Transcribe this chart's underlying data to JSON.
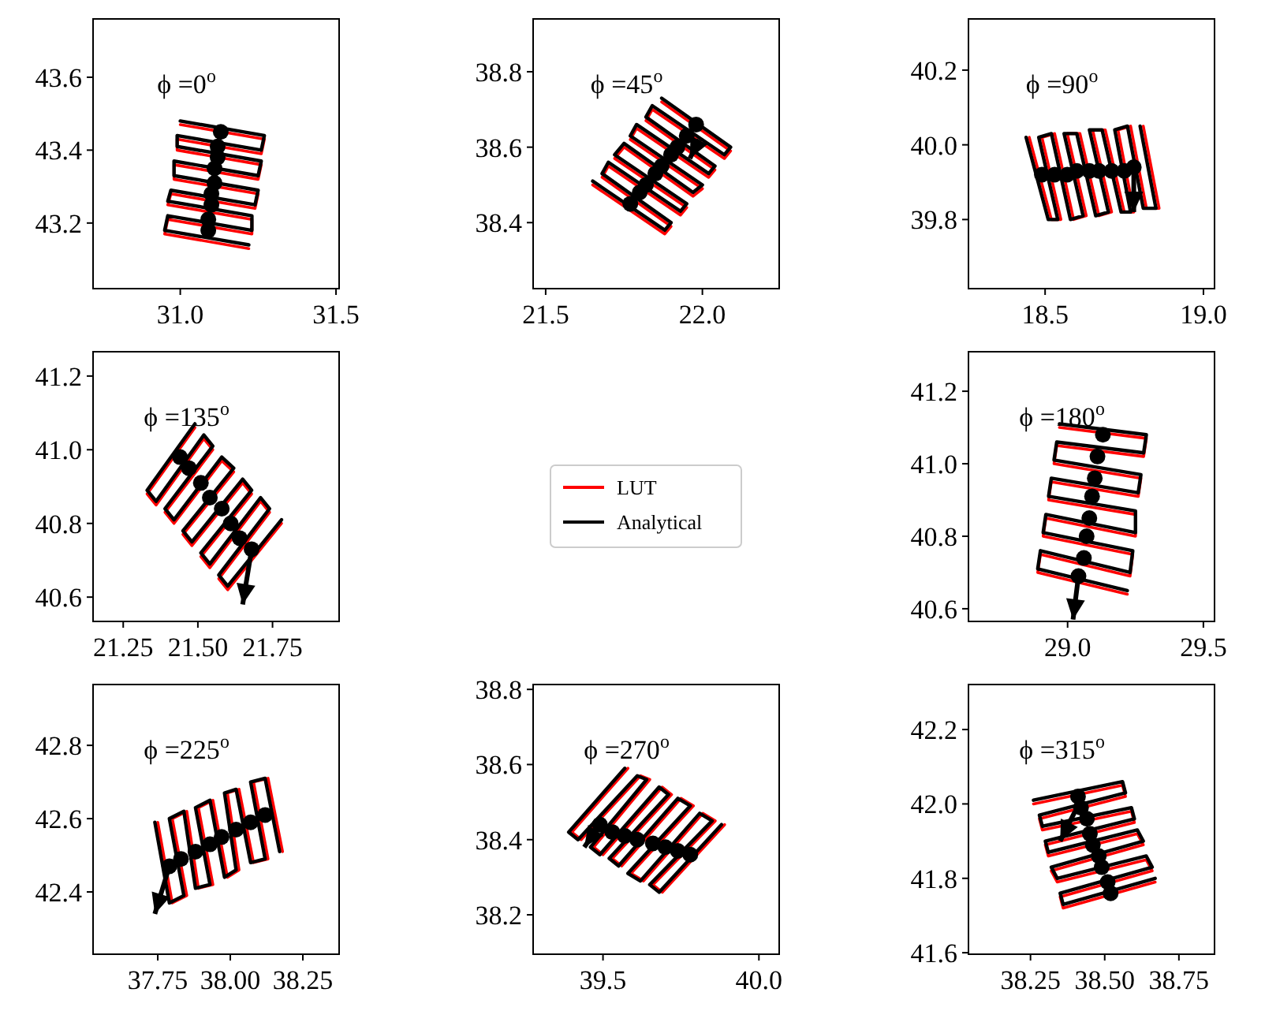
{
  "chart_data": [
    {
      "type": "line",
      "title": "ϕ =0$^{o}$",
      "xlim": [
        30.72,
        31.51
      ],
      "ylim": [
        43.02,
        43.76
      ],
      "xticks": [
        {
          "value": 31,
          "label": "31.0"
        },
        31.5
      ],
      "yticks": [
        43.2,
        43.4,
        43.6
      ],
      "series": [
        {
          "color": "#ff0000",
          "x": [
            31.0,
            31.27,
            31.26,
            30.99,
            30.99,
            31.26,
            31.25,
            30.98,
            30.98,
            31.25,
            31.24,
            30.97,
            30.96,
            31.23,
            31.23,
            30.96,
            30.95,
            31.22
          ],
          "values": [
            43.47,
            43.43,
            43.39,
            43.43,
            43.4,
            43.36,
            43.32,
            43.36,
            43.32,
            43.28,
            43.24,
            43.28,
            43.25,
            43.21,
            43.17,
            43.21,
            43.17,
            43.13
          ]
        },
        {
          "color": "#000000",
          "x": [
            31.0,
            31.27,
            31.26,
            30.99,
            30.99,
            31.26,
            31.25,
            30.98,
            30.98,
            31.25,
            31.24,
            30.97,
            30.96,
            31.23,
            31.23,
            30.96,
            30.95,
            31.22
          ],
          "values": [
            43.48,
            43.44,
            43.4,
            43.44,
            43.41,
            43.37,
            43.33,
            43.37,
            43.33,
            43.29,
            43.25,
            43.29,
            43.26,
            43.22,
            43.18,
            43.22,
            43.18,
            43.14
          ]
        },
        {
          "type": "scatter",
          "color": "#000000",
          "marker": "circle",
          "x": [
            31.13,
            31.12,
            31.12,
            31.11,
            31.11,
            31.1,
            31.1,
            31.09,
            31.09
          ],
          "values": [
            43.45,
            43.41,
            43.38,
            43.35,
            43.31,
            43.28,
            43.25,
            43.21,
            43.18
          ]
        }
      ]
    },
    {
      "type": "line",
      "title": "ϕ =45$^{o}$",
      "xlim": [
        21.46,
        22.245
      ],
      "ylim": [
        38.225,
        38.94
      ],
      "xticks": [
        21.5,
        {
          "value": 22,
          "label": "22.0"
        }
      ],
      "yticks": [
        38.4,
        38.6,
        38.8
      ],
      "series": [
        {
          "color": "#ff0000",
          "x": [
            21.65,
            21.88,
            21.9,
            21.68,
            21.7,
            21.93,
            21.95,
            21.72,
            21.75,
            21.97,
            22.0,
            21.77,
            21.79,
            22.02,
            22.04,
            21.82,
            21.84,
            22.07,
            22.09,
            21.87
          ],
          "values": [
            38.5,
            38.37,
            38.39,
            38.52,
            38.55,
            38.42,
            38.44,
            38.57,
            38.6,
            38.47,
            38.49,
            38.62,
            38.65,
            38.52,
            38.54,
            38.67,
            38.7,
            38.57,
            38.59,
            38.72
          ]
        },
        {
          "color": "#000000",
          "x": [
            21.65,
            21.88,
            21.9,
            21.68,
            21.7,
            21.93,
            21.95,
            21.72,
            21.75,
            21.97,
            22.0,
            21.77,
            21.79,
            22.02,
            22.04,
            21.82,
            21.84,
            22.07,
            22.09,
            21.87
          ],
          "values": [
            38.51,
            38.38,
            38.4,
            38.53,
            38.56,
            38.43,
            38.45,
            38.58,
            38.61,
            38.48,
            38.5,
            38.63,
            38.66,
            38.53,
            38.55,
            38.68,
            38.71,
            38.58,
            38.6,
            38.73
          ]
        },
        {
          "type": "scatter",
          "color": "#000000",
          "marker": "circle",
          "x": [
            21.77,
            21.8,
            21.82,
            21.85,
            21.87,
            21.9,
            21.92,
            21.95,
            21.98
          ],
          "values": [
            38.45,
            38.48,
            38.5,
            38.53,
            38.55,
            38.58,
            38.6,
            38.63,
            38.66
          ]
        },
        {
          "color": "#000000",
          "x": [
            21.99,
            21.96
          ],
          "values": [
            38.62,
            38.57
          ]
        }
      ]
    },
    {
      "type": "line",
      "title": "ϕ =90$^{o}$",
      "xlim": [
        18.258,
        19.035
      ],
      "ylim": [
        39.615,
        40.337
      ],
      "xticks": [
        18.5,
        {
          "value": 19,
          "label": "19.0"
        }
      ],
      "yticks": [
        39.8,
        {
          "value": 40,
          "label": "40.0"
        },
        40.2
      ],
      "series": [
        {
          "color": "#ff0000",
          "x": [
            18.45,
            18.52,
            18.55,
            18.49,
            18.53,
            18.59,
            18.63,
            18.57,
            18.61,
            18.67,
            18.71,
            18.65,
            18.69,
            18.75,
            18.78,
            18.73,
            18.77,
            18.82,
            18.86,
            18.81
          ],
          "values": [
            40.02,
            39.8,
            39.8,
            40.02,
            40.03,
            39.8,
            39.81,
            40.03,
            40.03,
            39.81,
            39.82,
            40.04,
            40.04,
            39.82,
            39.82,
            40.04,
            40.05,
            39.83,
            39.83,
            40.05
          ]
        },
        {
          "color": "#000000",
          "x": [
            18.44,
            18.51,
            18.54,
            18.48,
            18.52,
            18.58,
            18.62,
            18.56,
            18.6,
            18.66,
            18.7,
            18.64,
            18.68,
            18.74,
            18.77,
            18.72,
            18.76,
            18.81,
            18.85,
            18.8
          ],
          "values": [
            40.02,
            39.8,
            39.8,
            40.02,
            40.03,
            39.8,
            39.81,
            40.03,
            40.03,
            39.81,
            39.82,
            40.04,
            40.04,
            39.82,
            39.82,
            40.04,
            40.05,
            39.83,
            39.83,
            40.05
          ]
        },
        {
          "type": "scatter",
          "color": "#000000",
          "marker": "circle",
          "x": [
            18.49,
            18.53,
            18.57,
            18.6,
            18.64,
            18.67,
            18.71,
            18.75,
            18.78
          ],
          "values": [
            39.92,
            39.92,
            39.92,
            39.93,
            39.93,
            39.93,
            39.93,
            39.93,
            39.94
          ]
        },
        {
          "color": "#000000",
          "x": [
            18.78,
            18.78
          ],
          "values": [
            39.94,
            39.82
          ]
        }
      ]
    },
    {
      "type": "line",
      "title": "ϕ =135$^{o}$",
      "legend": "right",
      "xlim": [
        21.149,
        21.973
      ],
      "ylim": [
        40.534,
        41.266
      ],
      "xticks": [
        {
          "value": 21.25,
          "label": "21.25"
        },
        {
          "value": 21.5,
          "label": "21.50"
        },
        {
          "value": 21.75,
          "label": "21.75"
        }
      ],
      "yticks": [
        40.6,
        40.8,
        {
          "value": 41,
          "label": "41.0"
        },
        41.2
      ],
      "series": [
        {
          "name": "LUT",
          "color": "#ff0000",
          "x": [
            21.49,
            21.33,
            21.36,
            21.52,
            21.55,
            21.39,
            21.42,
            21.58,
            21.62,
            21.45,
            21.48,
            21.65,
            21.68,
            21.51,
            21.54,
            21.71,
            21.74,
            21.57,
            21.6,
            21.78
          ],
          "values": [
            41.06,
            40.88,
            40.85,
            41.03,
            41.0,
            40.83,
            40.8,
            40.97,
            40.94,
            40.77,
            40.74,
            40.91,
            40.88,
            40.71,
            40.68,
            40.86,
            40.83,
            40.65,
            40.62,
            40.8
          ]
        },
        {
          "name": "Analytical",
          "color": "#000000",
          "x": [
            21.49,
            21.33,
            21.36,
            21.52,
            21.55,
            21.39,
            21.42,
            21.58,
            21.62,
            21.45,
            21.48,
            21.65,
            21.68,
            21.51,
            21.54,
            21.71,
            21.74,
            21.57,
            21.6,
            21.78
          ],
          "values": [
            41.07,
            40.89,
            40.86,
            41.04,
            41.01,
            40.84,
            40.81,
            40.98,
            40.95,
            40.78,
            40.75,
            40.92,
            40.89,
            40.72,
            40.69,
            40.87,
            40.84,
            40.66,
            40.63,
            40.81
          ]
        },
        {
          "type": "scatter",
          "color": "#000000",
          "marker": "circle",
          "x": [
            21.44,
            21.47,
            21.51,
            21.54,
            21.58,
            21.61,
            21.64,
            21.68
          ],
          "values": [
            40.98,
            40.95,
            40.91,
            40.87,
            40.84,
            40.8,
            40.76,
            40.73
          ]
        },
        {
          "color": "#000000",
          "x": [
            21.68,
            21.65
          ],
          "values": [
            40.73,
            40.58
          ]
        }
      ]
    },
    {
      "type": "line",
      "title": "ϕ =180$^{o}$",
      "xlim": [
        28.635,
        29.541
      ],
      "ylim": [
        40.565,
        41.309
      ],
      "xticks": [
        {
          "value": 29,
          "label": "29.0"
        },
        29.5
      ],
      "yticks": [
        40.6,
        40.8,
        {
          "value": 41,
          "label": "41.0"
        },
        41.2
      ],
      "series": [
        {
          "color": "#ff0000",
          "x": [
            28.97,
            29.29,
            29.28,
            28.96,
            28.95,
            29.27,
            29.26,
            28.94,
            28.93,
            29.25,
            29.25,
            28.92,
            28.91,
            29.24,
            29.23,
            28.9,
            28.89,
            29.22
          ],
          "values": [
            41.1,
            41.07,
            41.02,
            41.05,
            41.0,
            40.96,
            40.91,
            40.95,
            40.9,
            40.86,
            40.8,
            40.85,
            40.8,
            40.75,
            40.69,
            40.75,
            40.7,
            40.64
          ]
        },
        {
          "color": "#000000",
          "x": [
            28.97,
            29.29,
            29.28,
            28.96,
            28.95,
            29.27,
            29.26,
            28.94,
            28.93,
            29.25,
            29.25,
            28.92,
            28.91,
            29.24,
            29.23,
            28.9,
            28.89,
            29.22
          ],
          "values": [
            41.11,
            41.08,
            41.03,
            41.06,
            41.01,
            40.97,
            40.92,
            40.96,
            40.91,
            40.87,
            40.81,
            40.86,
            40.81,
            40.76,
            40.7,
            40.76,
            40.71,
            40.65
          ]
        },
        {
          "type": "scatter",
          "color": "#000000",
          "marker": "circle",
          "x": [
            29.13,
            29.11,
            29.1,
            29.09,
            29.08,
            29.07,
            29.06,
            29.04
          ],
          "values": [
            41.08,
            41.02,
            40.96,
            40.91,
            40.85,
            40.8,
            40.74,
            40.69
          ]
        },
        {
          "color": "#000000",
          "x": [
            29.04,
            29.02
          ],
          "values": [
            40.69,
            40.57
          ]
        }
      ]
    },
    {
      "type": "line",
      "title": "ϕ =225$^{o}$",
      "xlim": [
        37.527,
        38.375
      ],
      "ylim": [
        42.23,
        42.966
      ],
      "xticks": [
        {
          "value": 37.75,
          "label": "37.75"
        },
        {
          "value": 38.0,
          "label": "38.00"
        },
        {
          "value": 38.25,
          "label": "38.25"
        }
      ],
      "yticks": [
        42.4,
        42.6,
        42.8
      ],
      "series": [
        {
          "color": "#ff0000",
          "x": [
            37.75,
            37.8,
            37.85,
            37.8,
            37.85,
            37.89,
            37.94,
            37.89,
            37.94,
            37.99,
            38.03,
            37.99,
            38.03,
            38.08,
            38.13,
            38.08,
            38.13,
            38.18
          ],
          "values": [
            42.59,
            42.37,
            42.39,
            42.6,
            42.62,
            42.41,
            42.42,
            42.63,
            42.65,
            42.44,
            42.46,
            42.67,
            42.68,
            42.48,
            42.49,
            42.7,
            42.71,
            42.51
          ]
        },
        {
          "color": "#000000",
          "x": [
            37.74,
            37.79,
            37.84,
            37.79,
            37.84,
            37.88,
            37.93,
            37.88,
            37.93,
            37.98,
            38.02,
            37.98,
            38.02,
            38.07,
            38.12,
            38.07,
            38.12,
            38.17
          ],
          "values": [
            42.59,
            42.37,
            42.39,
            42.6,
            42.62,
            42.41,
            42.42,
            42.63,
            42.65,
            42.44,
            42.46,
            42.67,
            42.68,
            42.48,
            42.49,
            42.7,
            42.71,
            42.51
          ]
        },
        {
          "type": "scatter",
          "color": "#000000",
          "marker": "circle",
          "x": [
            37.79,
            37.83,
            37.88,
            37.93,
            37.97,
            38.02,
            38.07,
            38.12
          ],
          "values": [
            42.47,
            42.49,
            42.51,
            42.53,
            42.55,
            42.57,
            42.59,
            42.61
          ]
        },
        {
          "color": "#000000",
          "x": [
            37.79,
            37.74
          ],
          "values": [
            42.47,
            42.34
          ]
        }
      ]
    },
    {
      "type": "line",
      "title": "ϕ =270$^{o}$",
      "xlim": [
        39.276,
        40.065
      ],
      "ylim": [
        38.095,
        38.813
      ],
      "xticks": [
        39.5,
        {
          "value": 40,
          "label": "40.0"
        }
      ],
      "yticks": [
        38.2,
        38.4,
        38.6,
        38.8
      ],
      "series": [
        {
          "color": "#ff0000",
          "x": [
            39.58,
            39.4,
            39.43,
            39.62,
            39.65,
            39.47,
            39.5,
            39.69,
            39.72,
            39.53,
            39.56,
            39.75,
            39.79,
            39.59,
            39.63,
            39.82,
            39.86,
            39.66,
            39.69,
            39.89
          ],
          "values": [
            38.59,
            38.42,
            38.4,
            38.57,
            38.56,
            38.38,
            38.36,
            38.54,
            38.52,
            38.35,
            38.33,
            38.51,
            38.49,
            38.31,
            38.29,
            38.47,
            38.45,
            38.28,
            38.26,
            38.44
          ]
        },
        {
          "color": "#000000",
          "x": [
            39.57,
            39.39,
            39.42,
            39.61,
            39.64,
            39.46,
            39.49,
            39.68,
            39.71,
            39.52,
            39.55,
            39.74,
            39.78,
            39.58,
            39.62,
            39.81,
            39.85,
            39.65,
            39.68,
            39.88
          ],
          "values": [
            38.59,
            38.42,
            38.4,
            38.57,
            38.56,
            38.38,
            38.36,
            38.54,
            38.52,
            38.35,
            38.33,
            38.51,
            38.49,
            38.31,
            38.29,
            38.47,
            38.45,
            38.28,
            38.26,
            38.44
          ]
        },
        {
          "type": "scatter",
          "color": "#000000",
          "marker": "circle",
          "x": [
            39.49,
            39.53,
            39.57,
            39.61,
            39.66,
            39.7,
            39.74,
            39.78
          ],
          "values": [
            38.44,
            38.42,
            38.41,
            38.4,
            38.39,
            38.38,
            38.37,
            38.36
          ]
        },
        {
          "color": "#000000",
          "x": [
            39.49,
            39.44
          ],
          "values": [
            38.44,
            38.38
          ]
        }
      ]
    },
    {
      "type": "line",
      "title": "ϕ =315$^{o}$",
      "xlim": [
        38.041,
        38.87
      ],
      "ylim": [
        41.596,
        42.321
      ],
      "xticks": [
        {
          "value": 38.25,
          "label": "38.25"
        },
        {
          "value": 38.5,
          "label": "38.50"
        },
        {
          "value": 38.75,
          "label": "38.75"
        }
      ],
      "yticks": [
        41.6,
        41.8,
        {
          "value": 42,
          "label": "42.0"
        },
        42.2
      ],
      "series": [
        {
          "color": "#ff0000",
          "x": [
            38.26,
            38.56,
            38.57,
            38.28,
            38.29,
            38.59,
            38.6,
            38.3,
            38.31,
            38.61,
            38.63,
            38.32,
            38.34,
            38.64,
            38.66,
            38.35,
            38.36,
            38.67
          ],
          "values": [
            42.0,
            42.05,
            42.02,
            41.96,
            41.93,
            41.98,
            41.95,
            41.89,
            41.86,
            41.92,
            41.89,
            41.82,
            41.79,
            41.85,
            41.82,
            41.75,
            41.72,
            41.79
          ]
        },
        {
          "color": "#000000",
          "x": [
            38.26,
            38.56,
            38.57,
            38.28,
            38.29,
            38.59,
            38.6,
            38.3,
            38.31,
            38.61,
            38.63,
            38.32,
            38.34,
            38.64,
            38.66,
            38.35,
            38.36,
            38.67
          ],
          "values": [
            42.01,
            42.06,
            42.03,
            41.97,
            41.94,
            41.99,
            41.96,
            41.9,
            41.87,
            41.93,
            41.9,
            41.83,
            41.8,
            41.86,
            41.83,
            41.76,
            41.73,
            41.8
          ]
        },
        {
          "type": "scatter",
          "color": "#000000",
          "marker": "circle",
          "x": [
            38.41,
            38.42,
            38.44,
            38.45,
            38.46,
            38.48,
            38.49,
            38.51,
            38.52
          ],
          "values": [
            42.02,
            41.99,
            41.96,
            41.92,
            41.89,
            41.86,
            41.83,
            41.79,
            41.76
          ]
        },
        {
          "color": "#000000",
          "x": [
            38.4,
            38.35
          ],
          "values": [
            41.98,
            41.9
          ]
        }
      ]
    }
  ]
}
